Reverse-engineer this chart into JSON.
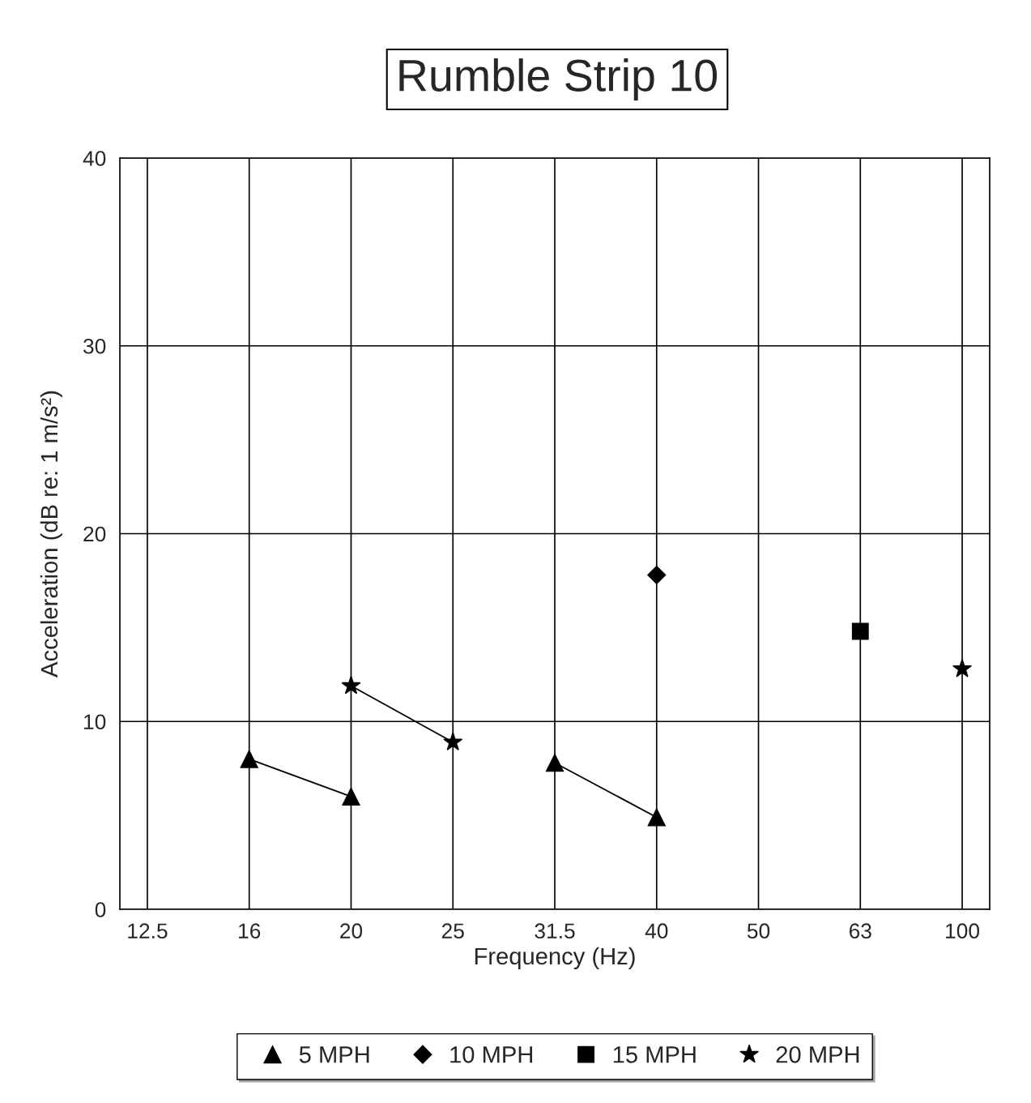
{
  "chart_data": {
    "type": "line",
    "title": "Rumble Strip 10",
    "xlabel": "Frequency (Hz)",
    "ylabel": "Acceleration (dB re: 1 m/s²)",
    "categories": [
      "12.5",
      "16",
      "20",
      "25",
      "31.5",
      "40",
      "50",
      "63",
      "100"
    ],
    "series": [
      {
        "name": "5 MPH",
        "color": "#000000",
        "marker": "triangle",
        "values": [
          null,
          8,
          6,
          null,
          7.8,
          4.9,
          null,
          null,
          null
        ]
      },
      {
        "name": "10 MPH",
        "color": "#000000",
        "marker": "diamond",
        "values": [
          null,
          null,
          null,
          null,
          null,
          17.8,
          null,
          null,
          null
        ]
      },
      {
        "name": "15 MPH",
        "color": "#000000",
        "marker": "square",
        "values": [
          null,
          null,
          null,
          null,
          null,
          null,
          null,
          14.8,
          null
        ]
      },
      {
        "name": "20 MPH",
        "color": "#000000",
        "marker": "star",
        "values": [
          null,
          null,
          11.9,
          8.9,
          null,
          null,
          null,
          null,
          12.8
        ]
      }
    ],
    "ylim": [
      0,
      40
    ],
    "yticks": [
      0,
      10,
      20,
      30,
      40
    ],
    "grid": true,
    "legend": "bottom"
  }
}
